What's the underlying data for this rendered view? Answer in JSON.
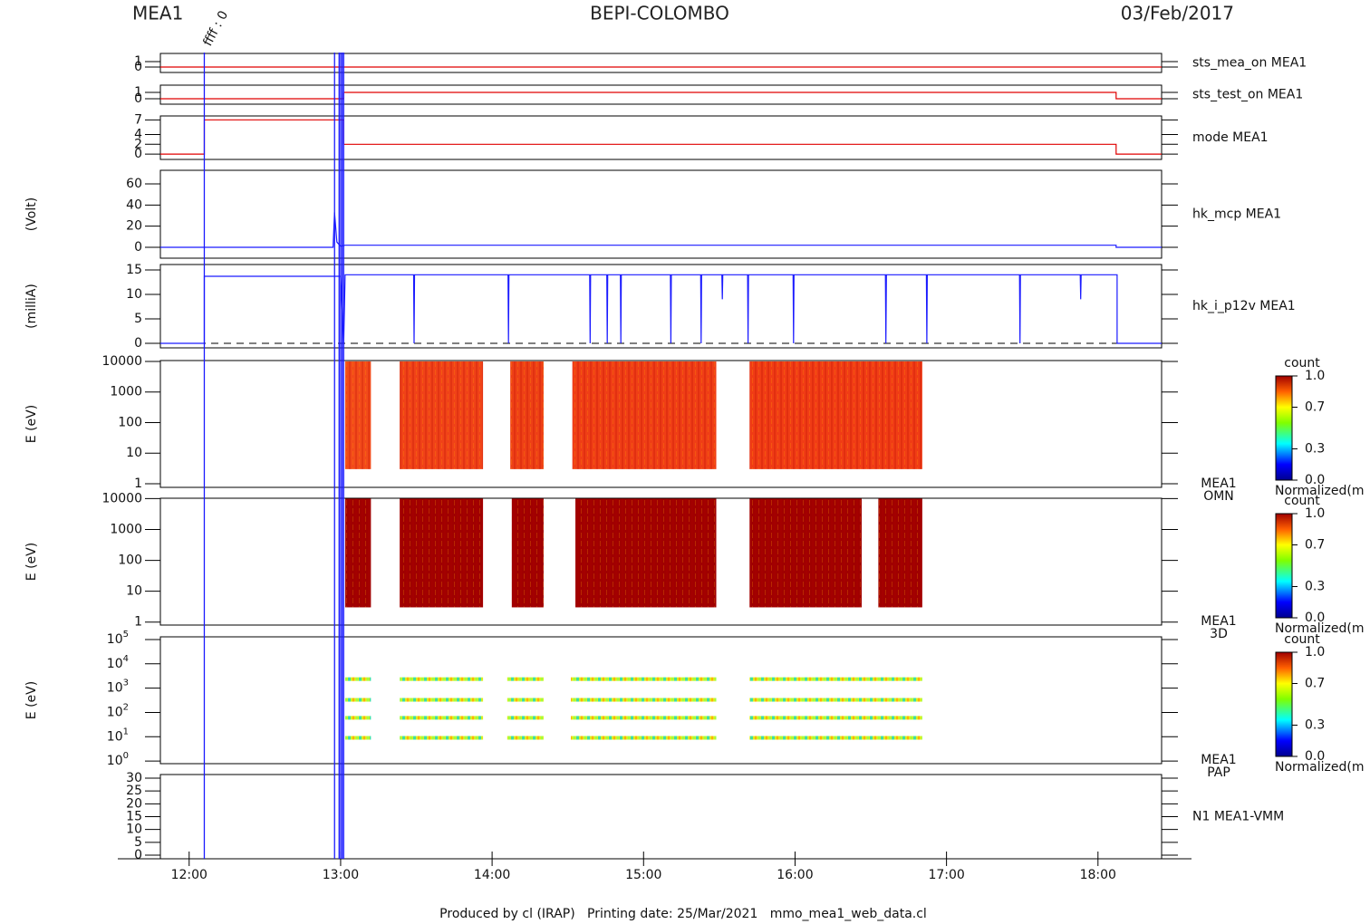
{
  "chart_data": {
    "type": "stacked-panels",
    "instrument": "MEA1",
    "title": "BEPI-COLOMBO",
    "date": "03/Feb/2017",
    "footer": "Produced by cl (IRAP)   Printing date: 25/Mar/2021   mmo_mea1_web_data.cl",
    "xlim": [
      11.81,
      18.42
    ],
    "xticks": [
      {
        "value": 12,
        "label": "12:00"
      },
      {
        "value": 13,
        "label": "13:00"
      },
      {
        "value": 14,
        "label": "14:00"
      },
      {
        "value": 15,
        "label": "15:00"
      },
      {
        "value": 16,
        "label": "16:00"
      },
      {
        "value": 17,
        "label": "17:00"
      },
      {
        "value": 18,
        "label": "18:00"
      }
    ],
    "event_color": "#1a1aff",
    "events": [
      {
        "x": 12.1,
        "label": "ffff : 0"
      },
      {
        "x": 12.96
      },
      {
        "x": 12.99
      },
      {
        "x": 13.0
      },
      {
        "x": 13.01
      },
      {
        "x": 13.02
      }
    ],
    "panels": [
      {
        "type": "line",
        "right_label": [
          "sts_mea_on MEA1"
        ],
        "label_color": "#e00000",
        "ylim": [
          -1,
          2.5
        ],
        "yticks": [
          0,
          1
        ],
        "series": [
          {
            "color": "#e00000",
            "x": [
              11.81,
              18.42
            ],
            "values": [
              0,
              0
            ]
          }
        ]
      },
      {
        "type": "line",
        "right_label": [
          "sts_test_on MEA1"
        ],
        "label_color": "#e00000",
        "ylim": [
          -0.86,
          2.14
        ],
        "yticks": [
          0,
          1
        ],
        "series": [
          {
            "color": "#e00000",
            "x": [
              11.81,
              13.02,
              13.02,
              18.12,
              18.12,
              18.42
            ],
            "values": [
              0,
              0,
              1,
              1,
              0,
              0
            ]
          }
        ]
      },
      {
        "type": "line",
        "right_label": [
          "mode MEA1"
        ],
        "label_color": "#e00000",
        "ylim": [
          -1.1,
          7.8
        ],
        "yticks": [
          0,
          2,
          4,
          7
        ],
        "series": [
          {
            "color": "#e00000",
            "x": [
              11.81,
              12.1,
              12.1,
              13.02,
              13.02,
              18.12,
              18.12,
              18.42
            ],
            "values": [
              0,
              0,
              7,
              7,
              2,
              2,
              0,
              0
            ]
          }
        ]
      },
      {
        "type": "line",
        "ylabel": "(Volt)",
        "right_label": [
          "hk_mcp MEA1"
        ],
        "label_color": "#1a1aff",
        "ylim": [
          -10.3,
          72.9
        ],
        "yticks": [
          0,
          20,
          40,
          60
        ],
        "series": [
          {
            "color": "#1a1aff",
            "x": [
              11.81,
              12.95,
              12.96,
              12.975,
              13.0,
              13.03,
              18.12,
              18.12,
              18.42
            ],
            "values": [
              0,
              0,
              33,
              5,
              1,
              2,
              2,
              0,
              0
            ]
          }
        ]
      },
      {
        "type": "line",
        "ylabel": "(milliA)",
        "right_label": [
          "hk_i_p12v MEA1"
        ],
        "label_color": "#1a1aff",
        "ylim": [
          -0.93,
          16.1
        ],
        "yticks": [
          0,
          5,
          10,
          15
        ],
        "reference": 0,
        "series": [
          {
            "color": "#1a1aff",
            "x": [
              11.81,
              12.1,
              12.1,
              13.0,
              13.02,
              13.03,
              13.482,
              13.485,
              13.488,
              14.105,
              14.108,
              14.111,
              14.644,
              14.647,
              14.65,
              14.757,
              14.76,
              14.763,
              14.847,
              14.85,
              14.853,
              15.177,
              15.18,
              15.183,
              15.377,
              15.38,
              15.383,
              15.517,
              15.52,
              15.523,
              15.687,
              15.69,
              15.693,
              15.987,
              15.99,
              15.993,
              16.597,
              16.6,
              16.603,
              16.867,
              16.87,
              16.873,
              17.482,
              17.485,
              17.488,
              17.883,
              17.886,
              17.889,
              18.126,
              18.126,
              18.42
            ],
            "values": [
              0,
              0,
              13.7,
              13.7,
              0,
              14,
              14,
              0,
              14,
              14,
              0,
              14,
              14,
              0,
              14,
              14,
              0,
              14,
              14,
              0,
              14,
              14,
              0,
              14,
              14,
              0,
              14,
              14,
              9,
              14,
              14,
              0,
              14,
              14,
              0,
              14,
              14,
              0,
              14,
              14,
              0,
              14,
              14,
              0,
              14,
              14,
              9,
              14,
              14,
              0,
              0
            ]
          }
        ]
      },
      {
        "type": "spectrogram",
        "ylabel": "E (eV)",
        "log": true,
        "right_label": [
          "MEA1",
          "OMN"
        ],
        "label_color": "#000000",
        "ylim": [
          0.76,
          10700
        ],
        "yticks": [
          1,
          10,
          100,
          1000,
          10000
        ],
        "blocks": [
          {
            "x": [
              13.03,
              13.2
            ],
            "e": [
              3,
              10000
            ],
            "color": "#f24a1a"
          },
          {
            "x": [
              13.39,
              13.94
            ],
            "e": [
              3,
              10000
            ],
            "color": "#f04218"
          },
          {
            "x": [
              14.12,
              14.34
            ],
            "e": [
              3,
              10000
            ],
            "color": "#ee4016"
          },
          {
            "x": [
              14.53,
              15.48
            ],
            "e": [
              3,
              10000
            ],
            "color": "#ef3e16"
          },
          {
            "x": [
              15.7,
              16.84
            ],
            "e": [
              3,
              10000
            ],
            "color": "#f03c15"
          }
        ],
        "colorbar": {
          "title": "count",
          "caption": "Normalized(m",
          "ticks": [
            {
              "value": 0,
              "label": "0.0"
            },
            {
              "value": 0.3,
              "label": "0.3"
            },
            {
              "value": 0.7,
              "label": "0.7"
            },
            {
              "value": 1,
              "label": "1.0"
            }
          ]
        }
      },
      {
        "type": "spectrogram",
        "ylabel": "E (eV)",
        "log": true,
        "right_label": [
          "MEA1",
          "3D"
        ],
        "label_color": "#000000",
        "ylim": [
          0.8,
          10300
        ],
        "yticks": [
          1,
          10,
          100,
          1000,
          10000
        ],
        "blocks": [
          {
            "x": [
              13.03,
              13.2
            ],
            "e": [
              3,
              10000
            ],
            "color": "#a00000"
          },
          {
            "x": [
              13.39,
              13.94
            ],
            "e": [
              3,
              10000
            ],
            "color": "#a00000"
          },
          {
            "x": [
              14.13,
              14.34
            ],
            "e": [
              3,
              10000
            ],
            "color": "#a00000"
          },
          {
            "x": [
              14.55,
              15.48
            ],
            "e": [
              3,
              10000
            ],
            "color": "#a00000"
          },
          {
            "x": [
              15.7,
              16.44
            ],
            "e": [
              3,
              10000
            ],
            "color": "#a00000"
          },
          {
            "x": [
              16.55,
              16.84
            ],
            "e": [
              3,
              10000
            ],
            "color": "#a00000"
          }
        ],
        "colorbar": {
          "title": "count",
          "caption": "Normalized(m",
          "ticks": [
            {
              "value": 0,
              "label": "0.0"
            },
            {
              "value": 0.3,
              "label": "0.3"
            },
            {
              "value": 0.7,
              "label": "0.7"
            },
            {
              "value": 1,
              "label": "1.0"
            }
          ]
        }
      },
      {
        "type": "pitch-angle",
        "ylabel": "E (eV)",
        "log": true,
        "right_label": [
          "MEA1",
          "PAP"
        ],
        "label_color": "#000000",
        "ylim": [
          0.78,
          129000
        ],
        "yticks": [
          {
            "value": 1,
            "label": "10",
            "exponent": "0"
          },
          {
            "value": 10,
            "label": "10",
            "exponent": "1"
          },
          {
            "value": 100,
            "label": "10",
            "exponent": "2"
          },
          {
            "value": 1000,
            "label": "10",
            "exponent": "3"
          },
          {
            "value": 10000,
            "label": "10",
            "exponent": "4"
          },
          {
            "value": 100000,
            "label": "10",
            "exponent": "5"
          }
        ],
        "energies": [
          2350,
          330,
          60,
          9
        ],
        "intervals": [
          [
            13.03,
            13.2
          ],
          [
            13.39,
            13.94
          ],
          [
            14.1,
            14.34
          ],
          [
            14.52,
            15.48
          ],
          [
            15.7,
            16.84
          ]
        ],
        "colorbar": {
          "title": "count",
          "caption": "Normalized(m",
          "ticks": [
            {
              "value": 0,
              "label": "0.0"
            },
            {
              "value": 0.3,
              "label": "0.3"
            },
            {
              "value": 0.7,
              "label": "0.7"
            },
            {
              "value": 1,
              "label": "1.0"
            }
          ]
        }
      },
      {
        "type": "line",
        "right_label": [
          "N1 MEA1-VMM"
        ],
        "label_color": "#1a1aff",
        "ylim": [
          -1.4,
          31.4
        ],
        "yticks": [
          0,
          5,
          10,
          15,
          20,
          25,
          30
        ],
        "series": []
      }
    ]
  }
}
